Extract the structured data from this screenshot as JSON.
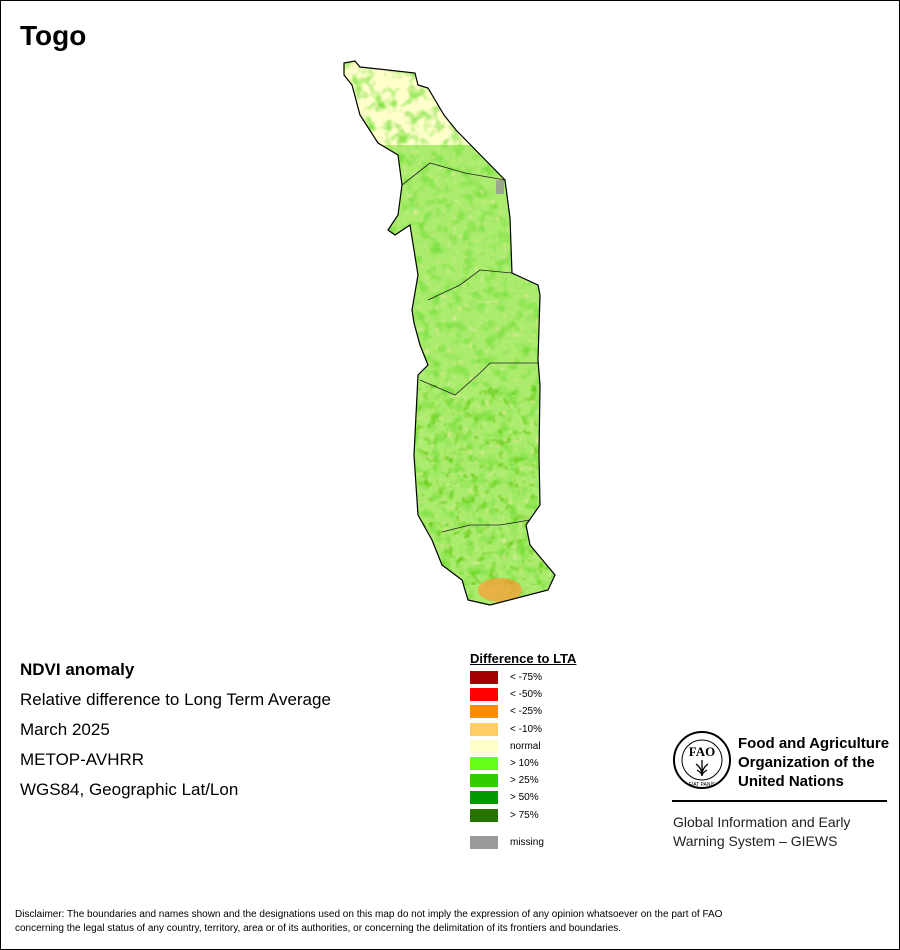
{
  "map": {
    "title": "Togo",
    "country": "Togo"
  },
  "metadata": {
    "product": "NDVI anomaly",
    "description": "Relative difference to Long Term Average",
    "period": "March 2025",
    "sensor": "METOP-AVHRR",
    "projection": "WGS84, Geographic Lat/Lon"
  },
  "legend": {
    "title": "Difference to LTA",
    "items": [
      {
        "label": "< -75%",
        "color": "#a50000"
      },
      {
        "label": "< -50%",
        "color": "#ff0000"
      },
      {
        "label": "< -25%",
        "color": "#ff8c00"
      },
      {
        "label": "< -10%",
        "color": "#ffcc66"
      },
      {
        "label": "normal",
        "color": "#ffffcc"
      },
      {
        "label": "> 10%",
        "color": "#66ff1a"
      },
      {
        "label": "> 25%",
        "color": "#33cc00"
      },
      {
        "label": "> 50%",
        "color": "#009900"
      },
      {
        "label": "> 75%",
        "color": "#267300"
      }
    ],
    "missing": {
      "label": "missing",
      "color": "#999999"
    }
  },
  "org": {
    "name_line1": "Food and Agriculture",
    "name_line2": "Organization of the",
    "name_line3": "United Nations",
    "logo_text": "FAO",
    "logo_motto": "FIAT PANIS",
    "system_line1": "Global Information and Early",
    "system_line2": "Warning System – GIEWS"
  },
  "disclaimer": {
    "line1": "Disclaimer: The boundaries and names shown and the designations used on this map do not imply the expression of any opinion whatsoever on the part of FAO",
    "line2": "concerning the legal status of any country, territory, area or of its authorities, or concerning the delimitation of its frontiers and boundaries."
  }
}
